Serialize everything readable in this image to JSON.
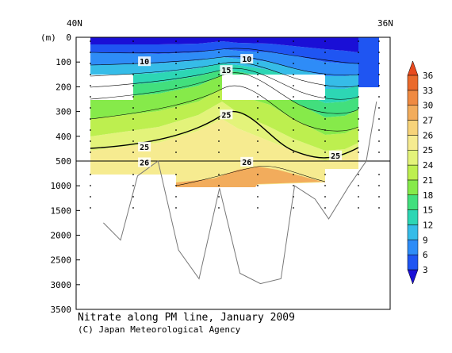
{
  "chart_data": {
    "type": "heatmap",
    "title": "Nitrate along PM line, January 2009",
    "credit": "(C) Japan Meteorological Agency",
    "x_start_label": "40N",
    "x_end_label": "36N",
    "y_unit_label": "(m)",
    "y_ticks_upper": [
      0,
      100,
      200,
      300,
      400,
      500
    ],
    "y_ticks_lower": [
      1000,
      1500,
      2000,
      2500,
      3000,
      3500
    ],
    "y_break_depth": 500,
    "colorbar_levels": [
      3,
      6,
      9,
      12,
      15,
      18,
      21,
      24,
      25,
      26,
      27,
      30,
      33,
      36
    ],
    "colorbar_colors": [
      "#1a0fd6",
      "#1f55f2",
      "#2e8cf7",
      "#36bce8",
      "#2dd6b4",
      "#42df7d",
      "#86ea4a",
      "#bdef4f",
      "#e3f37a",
      "#f6eb90",
      "#f7d37a",
      "#f2ac5c",
      "#ef8a42",
      "#ea6a2c",
      "#e84a1e"
    ],
    "contour_labels": [
      {
        "text": "10",
        "lat": 39.4,
        "depth": 100
      },
      {
        "text": "10",
        "lat": 37.9,
        "depth": 90
      },
      {
        "text": "15",
        "lat": 38.2,
        "depth": 135
      },
      {
        "text": "25",
        "lat": 38.2,
        "depth": 315
      },
      {
        "text": "25",
        "lat": 39.4,
        "depth": 445
      },
      {
        "text": "25",
        "lat": 36.6,
        "depth": 480
      },
      {
        "text": "26",
        "lat": 39.4,
        "depth": 540
      },
      {
        "text": "26",
        "lat": 37.9,
        "depth": 530
      }
    ],
    "bottom_profile": [
      {
        "lat": 40.0,
        "depth": 1750
      },
      {
        "lat": 39.75,
        "depth": 2100
      },
      {
        "lat": 39.5,
        "depth": 800
      },
      {
        "lat": 39.2,
        "depth": 500
      },
      {
        "lat": 38.9,
        "depth": 2300
      },
      {
        "lat": 38.6,
        "depth": 2880
      },
      {
        "lat": 38.3,
        "depth": 1050
      },
      {
        "lat": 38.0,
        "depth": 2770
      },
      {
        "lat": 37.7,
        "depth": 2980
      },
      {
        "lat": 37.4,
        "depth": 2880
      },
      {
        "lat": 37.2,
        "depth": 1000
      },
      {
        "lat": 36.9,
        "depth": 1270
      },
      {
        "lat": 36.7,
        "depth": 1670
      },
      {
        "lat": 36.4,
        "depth": 1000
      },
      {
        "lat": 36.15,
        "depth": 500
      },
      {
        "lat": 36.0,
        "depth": 260
      }
    ]
  }
}
